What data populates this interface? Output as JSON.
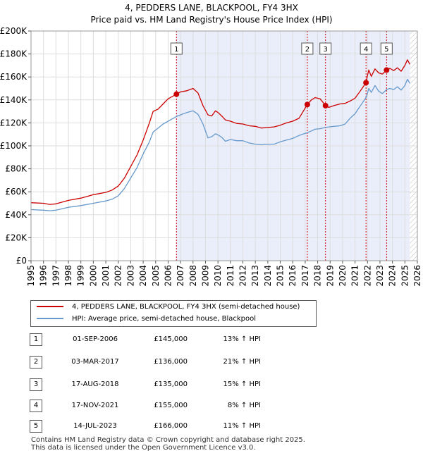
{
  "chart_data": {
    "type": "line",
    "title": "4, PEDDERS LANE, BLACKPOOL, FY4 3HX",
    "subtitle": "Price paid vs. HM Land Registry's House Price Index (HPI)",
    "xlabel": "",
    "ylabel": "",
    "xlim": [
      1995,
      2026
    ],
    "ylim": [
      0,
      200000
    ],
    "x_ticks": [
      "1995",
      "1996",
      "1997",
      "1998",
      "1999",
      "2000",
      "2001",
      "2002",
      "2003",
      "2004",
      "2005",
      "2006",
      "2007",
      "2008",
      "2009",
      "2010",
      "2011",
      "2012",
      "2013",
      "2014",
      "2015",
      "2016",
      "2017",
      "2018",
      "2019",
      "2020",
      "2021",
      "2022",
      "2023",
      "2024",
      "2025",
      "2026"
    ],
    "y_ticks": [
      {
        "value": 0,
        "label": "£0"
      },
      {
        "value": 20000,
        "label": "£20K"
      },
      {
        "value": 40000,
        "label": "£40K"
      },
      {
        "value": 60000,
        "label": "£60K"
      },
      {
        "value": 80000,
        "label": "£80K"
      },
      {
        "value": 100000,
        "label": "£100K"
      },
      {
        "value": 120000,
        "label": "£120K"
      },
      {
        "value": 140000,
        "label": "£140K"
      },
      {
        "value": 160000,
        "label": "£160K"
      },
      {
        "value": 180000,
        "label": "£180K"
      },
      {
        "value": 200000,
        "label": "£200K"
      }
    ],
    "grid": true,
    "shaded_period": [
      2006.67,
      2025.4
    ],
    "future_hatch_from": 2025.4,
    "series": [
      {
        "name": "4, PEDDERS LANE, BLACKPOOL, FY4 3HX (semi-detached house)",
        "color": "#cc0000",
        "points": [
          [
            1995.0,
            50500
          ],
          [
            1996.0,
            50000
          ],
          [
            1996.5,
            49000
          ],
          [
            1997.0,
            49500
          ],
          [
            1998.0,
            52500
          ],
          [
            1999.0,
            54500
          ],
          [
            2000.0,
            57500
          ],
          [
            2001.0,
            59500
          ],
          [
            2001.5,
            61500
          ],
          [
            2002.0,
            65000
          ],
          [
            2002.5,
            72000
          ],
          [
            2003.0,
            82000
          ],
          [
            2003.5,
            92000
          ],
          [
            2004.0,
            105000
          ],
          [
            2004.5,
            120000
          ],
          [
            2004.8,
            130000
          ],
          [
            2005.2,
            132000
          ],
          [
            2005.6,
            136500
          ],
          [
            2006.0,
            141000
          ],
          [
            2006.67,
            145000
          ],
          [
            2007.0,
            147000
          ],
          [
            2007.5,
            148000
          ],
          [
            2008.0,
            150000
          ],
          [
            2008.4,
            146000
          ],
          [
            2008.8,
            135000
          ],
          [
            2009.2,
            127000
          ],
          [
            2009.5,
            126000
          ],
          [
            2009.8,
            130500
          ],
          [
            2010.0,
            129000
          ],
          [
            2010.3,
            126000
          ],
          [
            2010.6,
            122500
          ],
          [
            2011.0,
            121500
          ],
          [
            2011.5,
            119500
          ],
          [
            2012.0,
            119000
          ],
          [
            2012.5,
            117500
          ],
          [
            2013.0,
            117000
          ],
          [
            2013.5,
            115500
          ],
          [
            2014.0,
            116000
          ],
          [
            2014.5,
            116500
          ],
          [
            2015.0,
            118000
          ],
          [
            2015.5,
            120000
          ],
          [
            2016.0,
            121500
          ],
          [
            2016.5,
            124000
          ],
          [
            2017.17,
            136000
          ],
          [
            2017.5,
            140000
          ],
          [
            2017.8,
            142000
          ],
          [
            2018.2,
            141000
          ],
          [
            2018.63,
            135000
          ],
          [
            2018.9,
            133500
          ],
          [
            2019.3,
            135000
          ],
          [
            2019.8,
            136500
          ],
          [
            2020.2,
            137000
          ],
          [
            2020.6,
            139000
          ],
          [
            2021.0,
            141500
          ],
          [
            2021.4,
            147500
          ],
          [
            2021.88,
            155000
          ],
          [
            2022.0,
            161500
          ],
          [
            2022.1,
            166000
          ],
          [
            2022.3,
            160500
          ],
          [
            2022.6,
            167000
          ],
          [
            2022.9,
            163500
          ],
          [
            2023.2,
            162500
          ],
          [
            2023.53,
            166000
          ],
          [
            2023.8,
            167500
          ],
          [
            2024.1,
            165500
          ],
          [
            2024.4,
            168000
          ],
          [
            2024.7,
            165000
          ],
          [
            2025.0,
            170000
          ],
          [
            2025.2,
            175000
          ],
          [
            2025.4,
            171000
          ]
        ]
      },
      {
        "name": "HPI: Average price, semi-detached house, Blackpool",
        "color": "#6699cc",
        "points": [
          [
            1995.0,
            44500
          ],
          [
            1996.0,
            44000
          ],
          [
            1996.5,
            43500
          ],
          [
            1997.0,
            44000
          ],
          [
            1998.0,
            46500
          ],
          [
            1999.0,
            48000
          ],
          [
            2000.0,
            50000
          ],
          [
            2001.0,
            52000
          ],
          [
            2001.5,
            53500
          ],
          [
            2002.0,
            56500
          ],
          [
            2002.5,
            63000
          ],
          [
            2003.0,
            72000
          ],
          [
            2003.5,
            81000
          ],
          [
            2004.0,
            93000
          ],
          [
            2004.5,
            103500
          ],
          [
            2004.8,
            112000
          ],
          [
            2005.2,
            115500
          ],
          [
            2005.6,
            119000
          ],
          [
            2006.0,
            121500
          ],
          [
            2006.67,
            125500
          ],
          [
            2007.0,
            127000
          ],
          [
            2007.5,
            129000
          ],
          [
            2008.0,
            130500
          ],
          [
            2008.4,
            127500
          ],
          [
            2008.8,
            119000
          ],
          [
            2009.2,
            107000
          ],
          [
            2009.5,
            108000
          ],
          [
            2009.8,
            110500
          ],
          [
            2010.0,
            109500
          ],
          [
            2010.3,
            107500
          ],
          [
            2010.6,
            104000
          ],
          [
            2011.0,
            105500
          ],
          [
            2011.5,
            104500
          ],
          [
            2012.0,
            104500
          ],
          [
            2012.5,
            102500
          ],
          [
            2013.0,
            101500
          ],
          [
            2013.5,
            101000
          ],
          [
            2014.0,
            101500
          ],
          [
            2014.5,
            101500
          ],
          [
            2015.0,
            103500
          ],
          [
            2015.5,
            105000
          ],
          [
            2016.0,
            106500
          ],
          [
            2016.5,
            109000
          ],
          [
            2017.17,
            111500
          ],
          [
            2017.5,
            113000
          ],
          [
            2017.8,
            114500
          ],
          [
            2018.2,
            115000
          ],
          [
            2018.63,
            116000
          ],
          [
            2018.9,
            116500
          ],
          [
            2019.3,
            117000
          ],
          [
            2019.8,
            117500
          ],
          [
            2020.2,
            119000
          ],
          [
            2020.6,
            124000
          ],
          [
            2021.0,
            128000
          ],
          [
            2021.4,
            134500
          ],
          [
            2021.88,
            142000
          ],
          [
            2022.0,
            146000
          ],
          [
            2022.1,
            150000
          ],
          [
            2022.3,
            146500
          ],
          [
            2022.6,
            152500
          ],
          [
            2022.9,
            147500
          ],
          [
            2023.2,
            145500
          ],
          [
            2023.53,
            149000
          ],
          [
            2023.8,
            150000
          ],
          [
            2024.1,
            149000
          ],
          [
            2024.4,
            151500
          ],
          [
            2024.7,
            148500
          ],
          [
            2025.0,
            152500
          ],
          [
            2025.2,
            158000
          ],
          [
            2025.4,
            154500
          ]
        ]
      }
    ],
    "sales": [
      {
        "num": "1",
        "x": 2006.67,
        "value": 145000
      },
      {
        "num": "2",
        "x": 2017.17,
        "value": 136000
      },
      {
        "num": "3",
        "x": 2018.63,
        "value": 135000
      },
      {
        "num": "4",
        "x": 2021.88,
        "value": 155000
      },
      {
        "num": "5",
        "x": 2023.53,
        "value": 166000
      }
    ]
  },
  "legend": {
    "property_label": "4, PEDDERS LANE, BLACKPOOL, FY4 3HX (semi-detached house)",
    "hpi_label": "HPI: Average price, semi-detached house, Blackpool"
  },
  "table": [
    {
      "num": "1",
      "date": "01-SEP-2006",
      "price": "£145,000",
      "hpi": "13% ↑ HPI"
    },
    {
      "num": "2",
      "date": "03-MAR-2017",
      "price": "£136,000",
      "hpi": "21% ↑ HPI"
    },
    {
      "num": "3",
      "date": "17-AUG-2018",
      "price": "£135,000",
      "hpi": "15% ↑ HPI"
    },
    {
      "num": "4",
      "date": "17-NOV-2021",
      "price": "£155,000",
      "hpi": "8% ↑ HPI"
    },
    {
      "num": "5",
      "date": "14-JUL-2023",
      "price": "£166,000",
      "hpi": "11% ↑ HPI"
    }
  ],
  "footer": {
    "line1": "Contains HM Land Registry data © Crown copyright and database right 2025.",
    "line2": "This data is licensed under the Open Government Licence v3.0."
  },
  "colors": {
    "property": "#cc0000",
    "hpi": "#6699cc",
    "shade": "#eaeefa",
    "grid": "#dddddd",
    "marker_line": "#cc0000"
  }
}
